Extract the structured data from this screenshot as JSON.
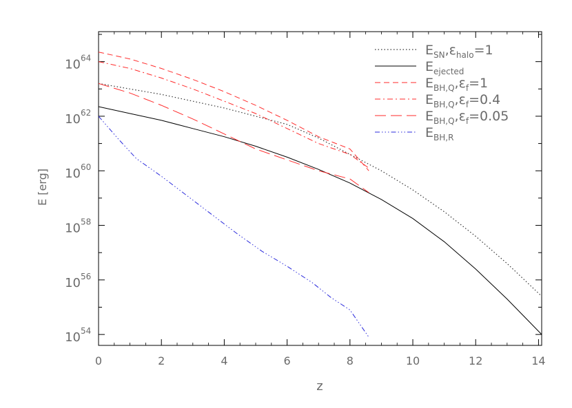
{
  "chart_data": {
    "type": "line",
    "title": "",
    "xlabel": "z",
    "ylabel": "E [erg]",
    "xlim": [
      0,
      14.1
    ],
    "ylim_log10": [
      53.6,
      65.1
    ],
    "y_scale": "log",
    "grid": false,
    "legend_placement": "top-right",
    "x_ticks": [
      "0",
      "2",
      "4",
      "6",
      "8",
      "10",
      "12",
      "14"
    ],
    "x_tick_values": [
      0,
      2,
      4,
      6,
      8,
      10,
      12,
      14
    ],
    "y_ticks": [
      {
        "base": "10",
        "exp": "54",
        "value": 54
      },
      {
        "base": "10",
        "exp": "56",
        "value": 56
      },
      {
        "base": "10",
        "exp": "58",
        "value": 58
      },
      {
        "base": "10",
        "exp": "60",
        "value": 60
      },
      {
        "base": "10",
        "exp": "62",
        "value": 62
      },
      {
        "base": "10",
        "exp": "64",
        "value": 64
      }
    ],
    "series": [
      {
        "legend": {
          "main": "E",
          "sub": "SN",
          "rest": ",ε",
          "rest_sub": "halo",
          "rest2": "=1"
        },
        "color": "#333333",
        "dash": "1.5,3",
        "width": 1.2,
        "x": [
          0,
          1,
          2,
          3,
          4,
          5,
          6,
          7,
          8,
          9,
          10,
          11,
          12,
          13,
          14.1
        ],
        "log10E": [
          63.2,
          63.0,
          62.8,
          62.55,
          62.3,
          62.0,
          61.7,
          61.2,
          60.6,
          60.0,
          59.3,
          58.5,
          57.6,
          56.6,
          55.4
        ]
      },
      {
        "legend": {
          "main": "E",
          "sub": "ejected",
          "rest": "",
          "rest_sub": "",
          "rest2": ""
        },
        "color": "#000000",
        "dash": "",
        "width": 1.0,
        "x": [
          0,
          1,
          2,
          3,
          4,
          5,
          6,
          7,
          8,
          9,
          10,
          11,
          12,
          13,
          14.1
        ],
        "log10E": [
          62.35,
          62.1,
          61.85,
          61.55,
          61.25,
          60.9,
          60.5,
          60.05,
          59.55,
          58.95,
          58.25,
          57.4,
          56.4,
          55.3,
          54.0
        ]
      },
      {
        "legend": {
          "main": "E",
          "sub": "BH,Q",
          "rest": ",ε",
          "rest_sub": "f",
          "rest2": "=1"
        },
        "color": "#ff2a2a",
        "dash": "8,5",
        "width": 1.0,
        "x": [
          0,
          1,
          2,
          3,
          4,
          5,
          6,
          7,
          8,
          8.6
        ],
        "log10E": [
          64.35,
          64.1,
          63.75,
          63.35,
          62.9,
          62.4,
          61.85,
          61.25,
          60.8,
          60.0
        ]
      },
      {
        "legend": {
          "main": "E",
          "sub": "BH,Q",
          "rest": ",ε",
          "rest_sub": "f",
          "rest2": "=0.4"
        },
        "color": "#ff2a2a",
        "dash": "8,4,2,4",
        "width": 1.0,
        "x": [
          0,
          1,
          2,
          3,
          4,
          5,
          6,
          7,
          8,
          8.6
        ],
        "log10E": [
          64.0,
          63.75,
          63.4,
          63.0,
          62.55,
          62.1,
          61.55,
          61.0,
          60.6,
          60.1
        ]
      },
      {
        "legend": {
          "main": "E",
          "sub": "BH,Q",
          "rest": ",ε",
          "rest_sub": "f",
          "rest2": "=0.05"
        },
        "color": "#ff2a2a",
        "dash": "16,7",
        "width": 1.0,
        "x": [
          0,
          1,
          2,
          3,
          4,
          5,
          6,
          7,
          8,
          8.6
        ],
        "log10E": [
          63.2,
          62.85,
          62.4,
          61.9,
          61.35,
          60.8,
          60.4,
          60.0,
          59.7,
          59.2
        ]
      },
      {
        "legend": {
          "main": "E",
          "sub": "BH,R",
          "rest": "",
          "rest_sub": "",
          "rest2": ""
        },
        "color": "#2a2adc",
        "dash": "7,3,1.5,3,1.5,3,1.5,3",
        "width": 1.0,
        "x": [
          0,
          0.6,
          1.2,
          2,
          2.8,
          3.6,
          4.4,
          5.2,
          6,
          6.8,
          7.4,
          8,
          8.6
        ],
        "log10E": [
          62.0,
          61.2,
          60.45,
          59.8,
          59.1,
          58.4,
          57.7,
          57.05,
          56.5,
          55.9,
          55.35,
          54.9,
          53.9
        ]
      }
    ]
  }
}
